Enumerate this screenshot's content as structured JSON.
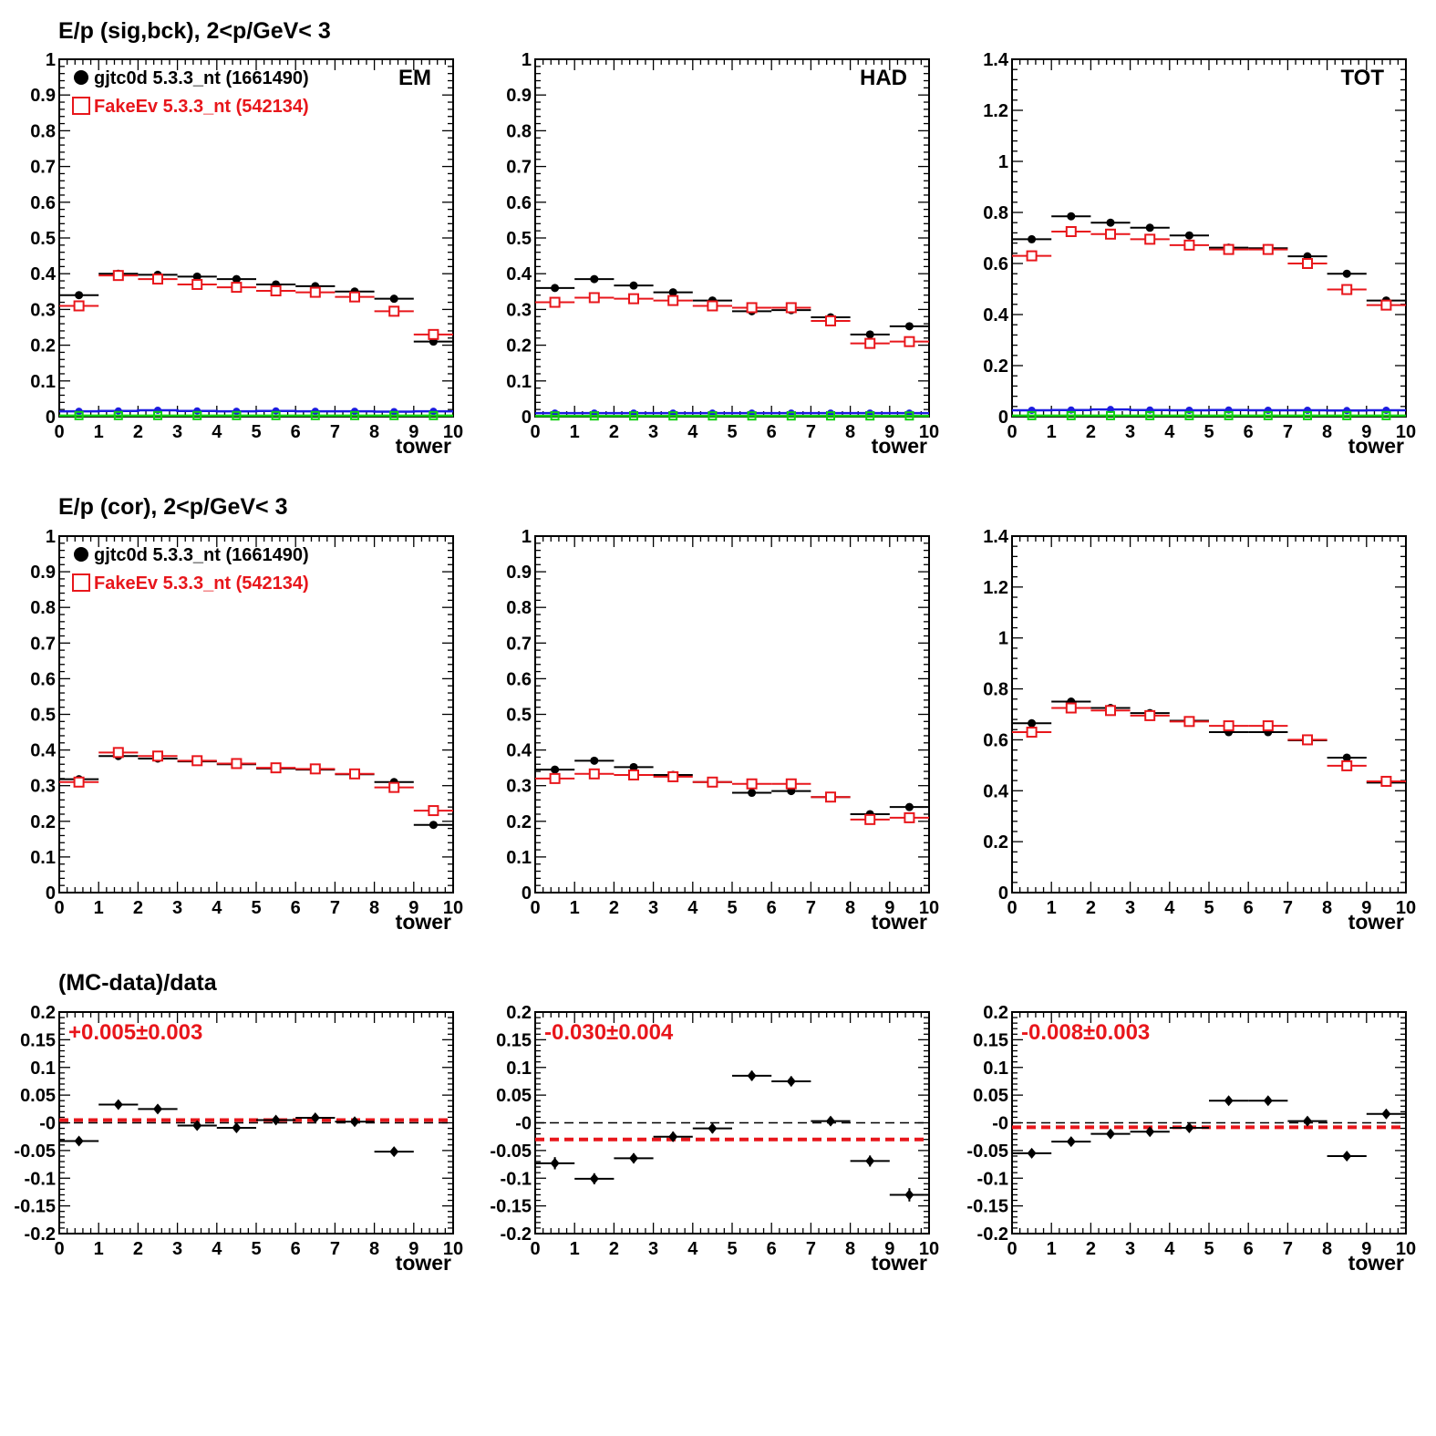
{
  "rows": [
    {
      "title": "E/p (sig,bck),  2<p/GeV< 3"
    },
    {
      "title": "E/p (cor),  2<p/GeV< 3"
    },
    {
      "title": "(MC-data)/data"
    }
  ],
  "legend": {
    "data_label": "gjtc0d 5.3.3_nt (1661490)",
    "mc_label": "FakeEv 5.3.3_nt (542134)"
  },
  "colors": {
    "data": "#000000",
    "mc": "#e8161b",
    "blue": "#1c1ce0",
    "green": "#12d012",
    "ratio_fit": "#e8161b"
  },
  "chart_data": [
    {
      "id": "sig-em",
      "type": "scatter",
      "tag": "EM",
      "xlabel": "tower",
      "xlim": [
        0,
        10
      ],
      "ylim": [
        0,
        1
      ],
      "yticks": [
        "0",
        "0.1",
        "0.2",
        "0.3",
        "0.4",
        "0.5",
        "0.6",
        "0.7",
        "0.8",
        "0.9",
        "1"
      ],
      "xticks": [
        "0",
        "1",
        "2",
        "3",
        "4",
        "5",
        "6",
        "7",
        "8",
        "9",
        "10"
      ],
      "x": [
        0.5,
        1.5,
        2.5,
        3.5,
        4.5,
        5.5,
        6.5,
        7.5,
        8.5,
        9.5
      ],
      "series": [
        {
          "name": "gjtc0d 5.3.3_nt (1661490)",
          "marker": "dot",
          "values": [
            0.34,
            0.4,
            0.397,
            0.392,
            0.385,
            0.37,
            0.365,
            0.35,
            0.33,
            0.21
          ]
        },
        {
          "name": "FakeEv 5.3.3_nt (542134)",
          "marker": "square",
          "values": [
            0.31,
            0.395,
            0.385,
            0.37,
            0.362,
            0.352,
            0.348,
            0.335,
            0.295,
            0.23
          ]
        },
        {
          "marker": "smalldot-blue",
          "values": [
            0.015,
            0.016,
            0.018,
            0.016,
            0.015,
            0.016,
            0.015,
            0.015,
            0.014,
            0.015
          ]
        },
        {
          "marker": "smallsquare-green",
          "values": [
            0.003,
            0.003,
            0.003,
            0.003,
            0.003,
            0.003,
            0.003,
            0.003,
            0.003,
            0.003
          ]
        }
      ]
    },
    {
      "id": "sig-had",
      "type": "scatter",
      "tag": "HAD",
      "xlabel": "tower",
      "xlim": [
        0,
        10
      ],
      "ylim": [
        0,
        1
      ],
      "yticks": [
        "0",
        "0.1",
        "0.2",
        "0.3",
        "0.4",
        "0.5",
        "0.6",
        "0.7",
        "0.8",
        "0.9",
        "1"
      ],
      "xticks": [
        "0",
        "1",
        "2",
        "3",
        "4",
        "5",
        "6",
        "7",
        "8",
        "9",
        "10"
      ],
      "x": [
        0.5,
        1.5,
        2.5,
        3.5,
        4.5,
        5.5,
        6.5,
        7.5,
        8.5,
        9.5
      ],
      "series": [
        {
          "marker": "dot",
          "values": [
            0.36,
            0.385,
            0.367,
            0.348,
            0.325,
            0.295,
            0.298,
            0.278,
            0.23,
            0.253
          ]
        },
        {
          "marker": "square",
          "values": [
            0.32,
            0.333,
            0.33,
            0.325,
            0.31,
            0.305,
            0.305,
            0.268,
            0.205,
            0.21
          ]
        },
        {
          "marker": "smalldot-blue",
          "values": [
            0.01,
            0.01,
            0.01,
            0.01,
            0.01,
            0.01,
            0.01,
            0.01,
            0.01,
            0.01
          ]
        },
        {
          "marker": "smallsquare-green",
          "values": [
            0.002,
            0.002,
            0.002,
            0.002,
            0.002,
            0.002,
            0.002,
            0.002,
            0.002,
            0.002
          ]
        }
      ]
    },
    {
      "id": "sig-tot",
      "type": "scatter",
      "tag": "TOT",
      "xlabel": "tower",
      "xlim": [
        0,
        10
      ],
      "ylim": [
        0,
        1.4
      ],
      "yticks": [
        "0",
        "0.2",
        "0.4",
        "0.6",
        "0.8",
        "1",
        "1.2",
        "1.4"
      ],
      "xticks": [
        "0",
        "1",
        "2",
        "3",
        "4",
        "5",
        "6",
        "7",
        "8",
        "9",
        "10"
      ],
      "x": [
        0.5,
        1.5,
        2.5,
        3.5,
        4.5,
        5.5,
        6.5,
        7.5,
        8.5,
        9.5
      ],
      "series": [
        {
          "marker": "dot",
          "values": [
            0.695,
            0.785,
            0.76,
            0.74,
            0.71,
            0.662,
            0.66,
            0.628,
            0.56,
            0.455
          ]
        },
        {
          "marker": "square",
          "values": [
            0.63,
            0.725,
            0.715,
            0.695,
            0.672,
            0.655,
            0.655,
            0.6,
            0.498,
            0.437
          ]
        },
        {
          "marker": "smalldot-blue",
          "values": [
            0.025,
            0.026,
            0.028,
            0.026,
            0.025,
            0.026,
            0.025,
            0.025,
            0.024,
            0.025
          ]
        },
        {
          "marker": "smallsquare-green",
          "values": [
            0.004,
            0.004,
            0.004,
            0.004,
            0.004,
            0.004,
            0.004,
            0.004,
            0.004,
            0.004
          ]
        }
      ]
    },
    {
      "id": "cor-em",
      "type": "scatter",
      "xlabel": "tower",
      "xlim": [
        0,
        10
      ],
      "ylim": [
        0,
        1
      ],
      "yticks": [
        "0",
        "0.1",
        "0.2",
        "0.3",
        "0.4",
        "0.5",
        "0.6",
        "0.7",
        "0.8",
        "0.9",
        "1"
      ],
      "xticks": [
        "0",
        "1",
        "2",
        "3",
        "4",
        "5",
        "6",
        "7",
        "8",
        "9",
        "10"
      ],
      "x": [
        0.5,
        1.5,
        2.5,
        3.5,
        4.5,
        5.5,
        6.5,
        7.5,
        8.5,
        9.5
      ],
      "series": [
        {
          "name": "gjtc0d 5.3.3_nt (1661490)",
          "marker": "dot",
          "values": [
            0.318,
            0.383,
            0.376,
            0.368,
            0.36,
            0.348,
            0.345,
            0.332,
            0.31,
            0.19
          ]
        },
        {
          "name": "FakeEv 5.3.3_nt (542134)",
          "marker": "square",
          "values": [
            0.31,
            0.393,
            0.383,
            0.37,
            0.362,
            0.35,
            0.347,
            0.333,
            0.295,
            0.23
          ]
        }
      ]
    },
    {
      "id": "cor-had",
      "type": "scatter",
      "xlabel": "tower",
      "xlim": [
        0,
        10
      ],
      "ylim": [
        0,
        1
      ],
      "yticks": [
        "0",
        "0.1",
        "0.2",
        "0.3",
        "0.4",
        "0.5",
        "0.6",
        "0.7",
        "0.8",
        "0.9",
        "1"
      ],
      "xticks": [
        "0",
        "1",
        "2",
        "3",
        "4",
        "5",
        "6",
        "7",
        "8",
        "9",
        "10"
      ],
      "x": [
        0.5,
        1.5,
        2.5,
        3.5,
        4.5,
        5.5,
        6.5,
        7.5,
        8.5,
        9.5
      ],
      "series": [
        {
          "marker": "dot",
          "values": [
            0.345,
            0.37,
            0.352,
            0.33,
            0.31,
            0.28,
            0.285,
            0.268,
            0.22,
            0.24
          ]
        },
        {
          "marker": "square",
          "values": [
            0.32,
            0.333,
            0.33,
            0.325,
            0.31,
            0.305,
            0.305,
            0.268,
            0.205,
            0.21
          ]
        }
      ]
    },
    {
      "id": "cor-tot",
      "type": "scatter",
      "xlabel": "tower",
      "xlim": [
        0,
        10
      ],
      "ylim": [
        0,
        1.4
      ],
      "yticks": [
        "0",
        "0.2",
        "0.4",
        "0.6",
        "0.8",
        "1",
        "1.2",
        "1.4"
      ],
      "xticks": [
        "0",
        "1",
        "2",
        "3",
        "4",
        "5",
        "6",
        "7",
        "8",
        "9",
        "10"
      ],
      "x": [
        0.5,
        1.5,
        2.5,
        3.5,
        4.5,
        5.5,
        6.5,
        7.5,
        8.5,
        9.5
      ],
      "series": [
        {
          "marker": "dot",
          "values": [
            0.665,
            0.75,
            0.725,
            0.705,
            0.675,
            0.63,
            0.63,
            0.598,
            0.53,
            0.432
          ]
        },
        {
          "marker": "square",
          "values": [
            0.63,
            0.725,
            0.715,
            0.695,
            0.672,
            0.655,
            0.655,
            0.6,
            0.498,
            0.437
          ]
        }
      ]
    },
    {
      "id": "ratio-em",
      "type": "scatter",
      "xlabel": "tower",
      "xlim": [
        0,
        10
      ],
      "ylim": [
        -0.2,
        0.2
      ],
      "yticks": [
        "-0.2",
        "-0.15",
        "-0.1",
        "-0.05",
        "-0",
        "0.05",
        "0.1",
        "0.15",
        "0.2"
      ],
      "xticks": [
        "0",
        "1",
        "2",
        "3",
        "4",
        "5",
        "6",
        "7",
        "8",
        "9",
        "10"
      ],
      "fit_text": "+0.005±0.003",
      "fit_value": 0.005,
      "x": [
        0.5,
        1.5,
        2.5,
        3.5,
        4.5,
        5.5,
        6.5,
        7.5,
        8.5
      ],
      "series": [
        {
          "marker": "diamond",
          "values": [
            -0.033,
            0.033,
            0.025,
            -0.005,
            -0.009,
            0.005,
            0.009,
            0.002,
            -0.052
          ],
          "errors": [
            0.007,
            0.007,
            0.007,
            0.006,
            0.006,
            0.006,
            0.006,
            0.006,
            0.004
          ]
        }
      ]
    },
    {
      "id": "ratio-had",
      "type": "scatter",
      "xlabel": "tower",
      "xlim": [
        0,
        10
      ],
      "ylim": [
        -0.2,
        0.2
      ],
      "yticks": [
        "-0.2",
        "-0.15",
        "-0.1",
        "-0.05",
        "-0",
        "0.05",
        "0.1",
        "0.15",
        "0.2"
      ],
      "xticks": [
        "0",
        "1",
        "2",
        "3",
        "4",
        "5",
        "6",
        "7",
        "8",
        "9",
        "10"
      ],
      "fit_text": "-0.030±0.004",
      "fit_value": -0.03,
      "x": [
        0.5,
        1.5,
        2.5,
        3.5,
        4.5,
        5.5,
        6.5,
        7.5,
        8.5,
        9.5
      ],
      "series": [
        {
          "marker": "diamond",
          "values": [
            -0.073,
            -0.101,
            -0.064,
            -0.025,
            -0.01,
            0.085,
            0.075,
            0.003,
            -0.069,
            -0.13
          ],
          "errors": [
            0.011,
            0.01,
            0.009,
            0.009,
            0.009,
            0.009,
            0.009,
            0.008,
            0.01,
            0.012
          ]
        }
      ]
    },
    {
      "id": "ratio-tot",
      "type": "scatter",
      "xlabel": "tower",
      "xlim": [
        0,
        10
      ],
      "ylim": [
        -0.2,
        0.2
      ],
      "yticks": [
        "-0.2",
        "-0.15",
        "-0.1",
        "-0.05",
        "-0",
        "0.05",
        "0.1",
        "0.15",
        "0.2"
      ],
      "xticks": [
        "0",
        "1",
        "2",
        "3",
        "4",
        "5",
        "6",
        "7",
        "8",
        "9",
        "10"
      ],
      "fit_text": "-0.008±0.003",
      "fit_value": -0.008,
      "x": [
        0.5,
        1.5,
        2.5,
        3.5,
        4.5,
        5.5,
        6.5,
        7.5,
        8.5,
        9.5
      ],
      "series": [
        {
          "marker": "diamond",
          "values": [
            -0.055,
            -0.034,
            -0.02,
            -0.016,
            -0.009,
            0.04,
            0.04,
            0.003,
            -0.06,
            0.016
          ],
          "errors": [
            0.006,
            0.006,
            0.005,
            0.005,
            0.005,
            0.005,
            0.005,
            0.005,
            0.005,
            0.008
          ]
        }
      ]
    }
  ]
}
